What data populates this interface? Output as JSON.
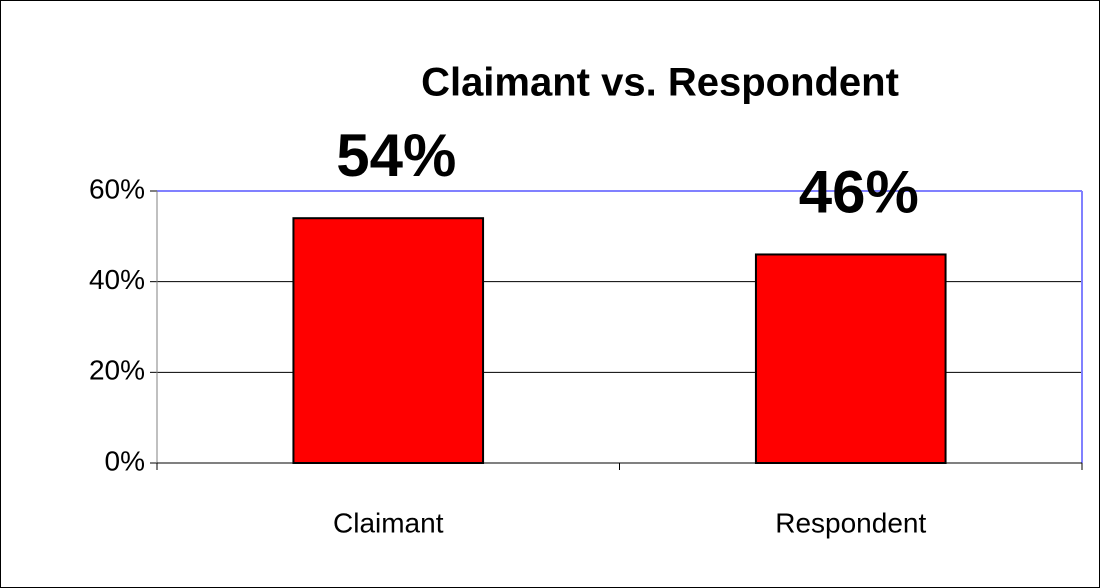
{
  "chart_data": {
    "type": "bar",
    "title": "Claimant vs. Respondent",
    "categories": [
      "Claimant",
      "Respondent"
    ],
    "values": [
      54,
      46
    ],
    "value_labels": [
      "54%",
      "46%"
    ],
    "color": "#ff0000",
    "ylim": [
      0,
      60
    ],
    "yticks": [
      {
        "value": 0,
        "label": "0%"
      },
      {
        "value": 20,
        "label": "20%"
      },
      {
        "value": 40,
        "label": "40%"
      },
      {
        "value": 60,
        "label": "60%"
      }
    ],
    "grid": true
  }
}
